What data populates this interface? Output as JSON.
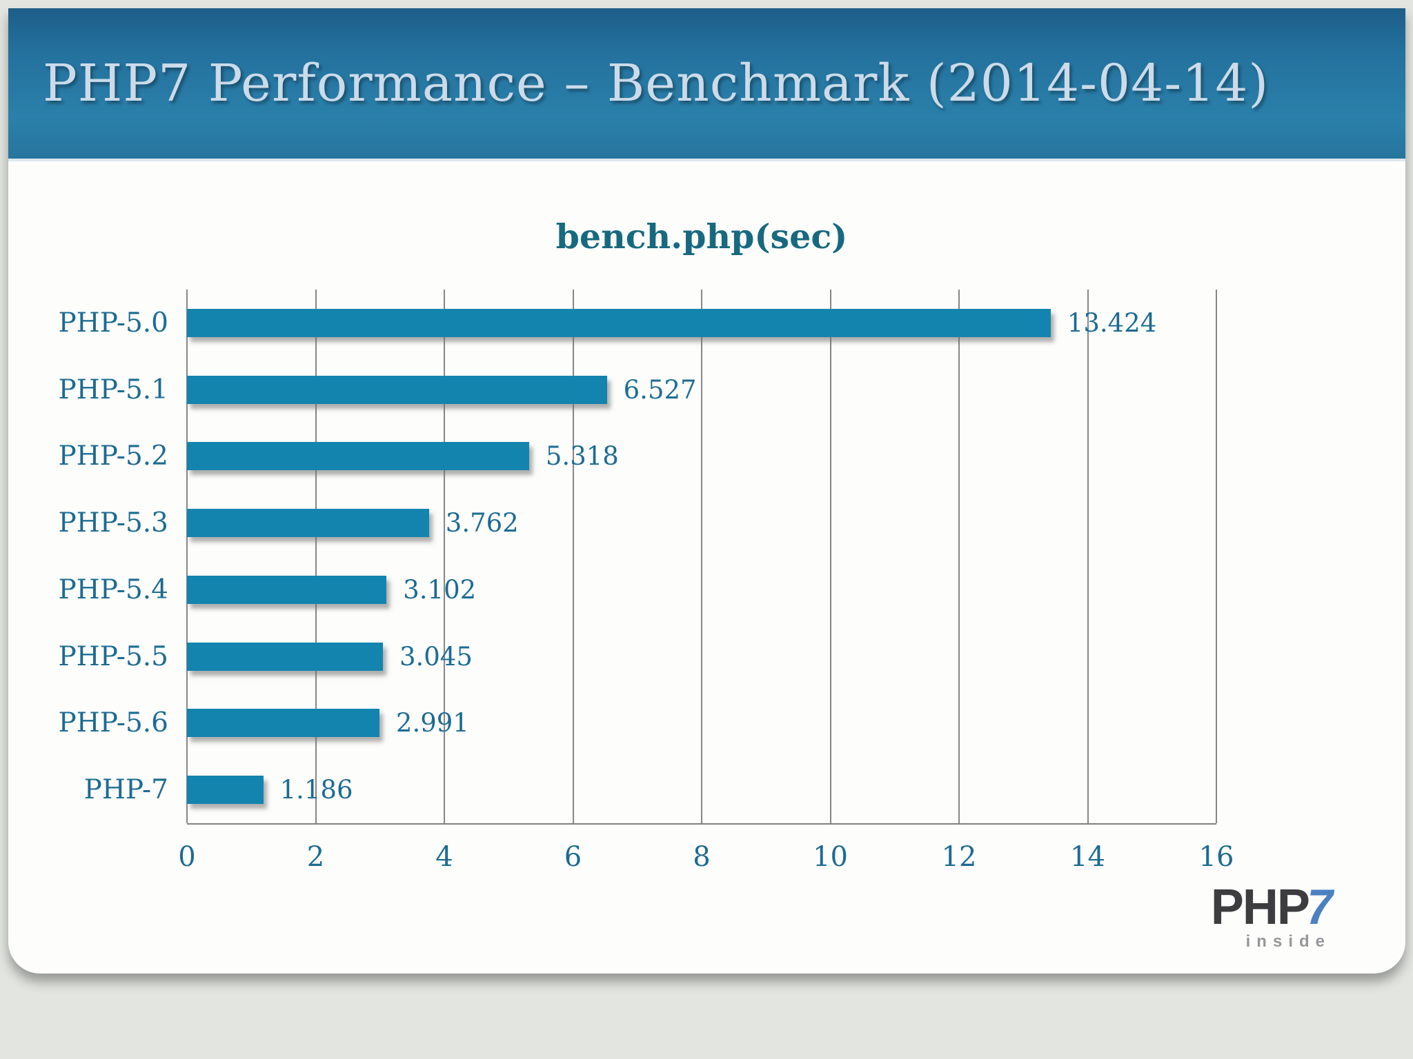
{
  "slide": {
    "header": {
      "title": "PHP7 Performance – Benchmark (2014-04-14)"
    },
    "logo": {
      "php": "PHP",
      "seven": "7",
      "inside": "inside"
    }
  },
  "colors": {
    "header_gradient_top": "#1d5e89",
    "header_gradient_bottom": "#2a80aa",
    "header_text": "#ccdbe9",
    "bar": "#1384ae",
    "chart_label": "#1c6b93",
    "chart_title": "#17697f",
    "gridline": "#868686",
    "slide_background": "#fdfdfc",
    "page_background": "#e3e5e0",
    "logo_php": "#3d3d40",
    "logo_seven": "#4b81c1",
    "logo_inside": "#97979a"
  },
  "chart_data": {
    "type": "bar",
    "orientation": "horizontal",
    "title": "bench.php(sec)",
    "xlabel": "",
    "ylabel": "",
    "categories": [
      "PHP-5.0",
      "PHP-5.1",
      "PHP-5.2",
      "PHP-5.3",
      "PHP-5.4",
      "PHP-5.5",
      "PHP-5.6",
      "PHP-7"
    ],
    "values": [
      13.424,
      6.527,
      5.318,
      3.762,
      3.102,
      3.045,
      2.991,
      1.186
    ],
    "value_labels": [
      "13.424",
      "6.527",
      "5.318",
      "3.762",
      "3.102",
      "3.045",
      "2.991",
      "1.186"
    ],
    "xlim": [
      0,
      16
    ],
    "xticks": [
      0,
      2,
      4,
      6,
      8,
      10,
      12,
      14,
      16
    ],
    "grid": "vertical",
    "legend": "none"
  }
}
